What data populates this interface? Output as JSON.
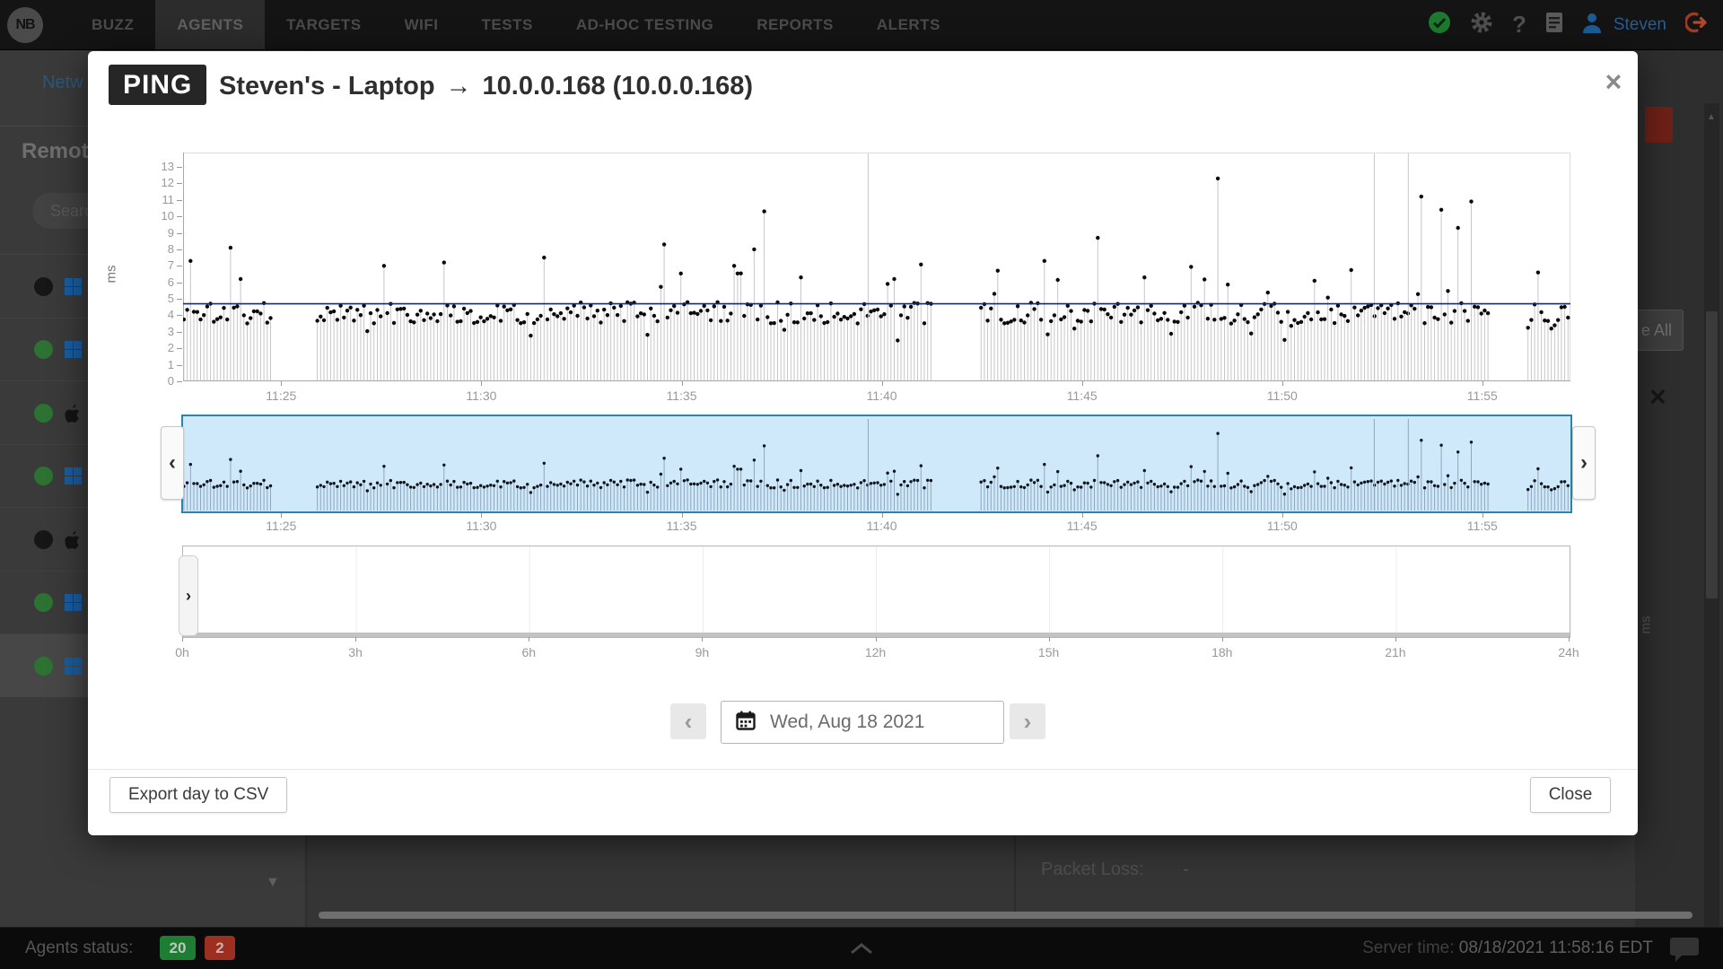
{
  "colors": {
    "selection_fill": "#cfe9fa",
    "selection_border": "#2b84ad",
    "avg_line": "#1b2a63",
    "stem_main": "#c6c6c6",
    "stem_overview": "#8fa6bd",
    "dot": "#0b0b0b",
    "status_green": "#1f7c33",
    "status_red": "#9c2f1f",
    "agent_up_dot": "#2d7233",
    "agent_down_dot": "#161616",
    "windows_icon": "#1a5da0",
    "apple_icon": "#141414"
  },
  "nav": {
    "logo_text": "NB",
    "items": [
      {
        "label": "BUZZ",
        "active": false
      },
      {
        "label": "AGENTS",
        "active": true
      },
      {
        "label": "TARGETS",
        "active": false
      },
      {
        "label": "WIFI",
        "active": false
      },
      {
        "label": "TESTS",
        "active": false
      },
      {
        "label": "AD-HOC TESTING",
        "active": false
      },
      {
        "label": "REPORTS",
        "active": false
      },
      {
        "label": "ALERTS",
        "active": false
      }
    ],
    "username": "Steven"
  },
  "sidebar": {
    "tab_label": "Netw",
    "heading": "Remot",
    "search_placeholder": "Search",
    "caret_icon": "▼",
    "agents": [
      {
        "status": "down",
        "os": "windows",
        "selected": false
      },
      {
        "status": "up",
        "os": "windows",
        "selected": false
      },
      {
        "status": "up",
        "os": "apple",
        "selected": false
      },
      {
        "status": "up",
        "os": "windows",
        "selected": false
      },
      {
        "status": "down",
        "os": "apple",
        "selected": false
      },
      {
        "status": "up",
        "os": "windows",
        "selected": false
      },
      {
        "status": "up",
        "os": "windows",
        "selected": true
      }
    ]
  },
  "modal": {
    "test_type_badge": "PING",
    "title_source": "Steven's - Laptop",
    "title_arrow": "→",
    "title_target": "10.0.0.168 (10.0.0.168)",
    "close_icon": "×",
    "date_label": "Wed, Aug 18 2021",
    "export_button": "Export day to CSV",
    "close_button": "Close",
    "icons": {
      "prev": "‹",
      "next": "›",
      "handle": "›"
    }
  },
  "chart_data": {
    "type": "scatter",
    "description": "Ping round-trip time stem plot, ~5s interval",
    "ylabel": "ms",
    "ylim": [
      0,
      13
    ],
    "y_ticks": [
      0,
      1,
      2,
      3,
      4,
      5,
      6,
      7,
      8,
      9,
      10,
      11,
      12,
      13
    ],
    "x_ticks": [
      {
        "label": "11:25",
        "min": 25
      },
      {
        "label": "11:30",
        "min": 30
      },
      {
        "label": "11:35",
        "min": 35
      },
      {
        "label": "11:40",
        "min": 40
      },
      {
        "label": "11:45",
        "min": 45
      },
      {
        "label": "11:50",
        "min": 50
      },
      {
        "label": "11:55",
        "min": 55
      }
    ],
    "t_start_min": 22.55,
    "t_end_min": 57.2,
    "step_min": 0.0833,
    "avg_line_ms": 4.7,
    "baseline_ms": [
      3.5,
      4.8
    ],
    "gaps_min": [
      [
        24.75,
        25.9
      ],
      [
        41.3,
        42.45
      ],
      [
        55.2,
        56.1
      ]
    ],
    "offscale_spikes_min": [
      39.66,
      52.3,
      53.15
    ],
    "spikes": [
      {
        "min": 22.7,
        "ms": 7.3
      },
      {
        "min": 23.7,
        "ms": 8.1
      },
      {
        "min": 24.0,
        "ms": 6.2
      },
      {
        "min": 27.6,
        "ms": 7.0
      },
      {
        "min": 29.1,
        "ms": 7.2
      },
      {
        "min": 31.6,
        "ms": 7.5
      },
      {
        "min": 34.6,
        "ms": 8.3
      },
      {
        "min": 36.3,
        "ms": 7.0
      },
      {
        "min": 36.85,
        "ms": 8.0
      },
      {
        "min": 37.05,
        "ms": 10.3
      },
      {
        "min": 38.0,
        "ms": 6.3
      },
      {
        "min": 40.3,
        "ms": 6.2
      },
      {
        "min": 44.1,
        "ms": 7.3
      },
      {
        "min": 45.4,
        "ms": 8.7
      },
      {
        "min": 46.6,
        "ms": 6.3
      },
      {
        "min": 48.4,
        "ms": 12.3
      },
      {
        "min": 50.8,
        "ms": 6.1
      },
      {
        "min": 53.5,
        "ms": 11.2
      },
      {
        "min": 53.95,
        "ms": 10.4
      },
      {
        "min": 54.4,
        "ms": 9.3
      },
      {
        "min": 54.75,
        "ms": 10.9
      },
      {
        "min": 56.4,
        "ms": 6.6
      }
    ],
    "seed": 1337,
    "timeline_ticks": [
      "0h",
      "3h",
      "6h",
      "9h",
      "12h",
      "15h",
      "18h",
      "21h",
      "24h"
    ]
  },
  "background_right": {
    "partial_button_label": "e All",
    "close_icon": "×",
    "axis_label": "ms"
  },
  "bottom_panel": {
    "packet_loss_label": "Packet Loss:",
    "packet_loss_value": "-"
  },
  "statusbar": {
    "agents_status_label": "Agents status:",
    "agents_up": "20",
    "agents_down": "2",
    "server_time_label": "Server time:",
    "server_time_value": "08/18/2021 11:58:16 EDT"
  }
}
